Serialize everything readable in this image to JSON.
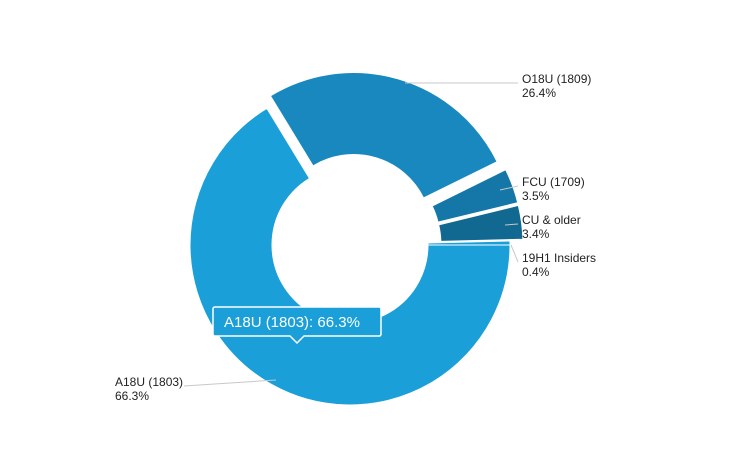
{
  "chart_data": {
    "type": "pie",
    "variant": "donut",
    "title": "",
    "slices": [
      {
        "name": "A18U (1803)",
        "value": 66.3,
        "value_label": "66.3%",
        "color": "#1a9fd8",
        "exploded": false
      },
      {
        "name": "O18U (1809)",
        "value": 26.4,
        "value_label": "26.4%",
        "color": "#1888be",
        "exploded": true
      },
      {
        "name": "FCU (1709)",
        "value": 3.5,
        "value_label": "3.5%",
        "color": "#1477a8",
        "exploded": true
      },
      {
        "name": "CU & older",
        "value": 3.4,
        "value_label": "3.4%",
        "color": "#116890",
        "exploded": true
      },
      {
        "name": "19H1 Insiders",
        "value": 0.4,
        "value_label": "0.4%",
        "color": "#1a9fd8",
        "exploded": false
      }
    ],
    "tooltip": {
      "text": "A18U (1803): 66.3%",
      "target": "A18U (1803)",
      "background": "#1a9fd8"
    },
    "legend": "none",
    "label_color": "#222222",
    "leader_line_color": "#c8c8c8"
  }
}
